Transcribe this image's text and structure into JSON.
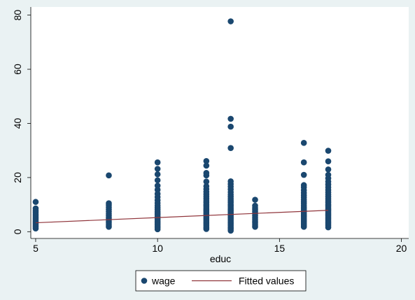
{
  "chart_data": {
    "type": "scatter",
    "title": "",
    "xlabel": "educ",
    "ylabel": "",
    "xlim": [
      4.8,
      20.3
    ],
    "ylim": [
      -2.5,
      83
    ],
    "xticks": [
      5,
      10,
      15,
      20
    ],
    "yticks": [
      0,
      20,
      40,
      60,
      80
    ],
    "grid": false,
    "legend_position": "bottom",
    "series": [
      {
        "name": "wage",
        "kind": "scatter",
        "color": "#1a476f",
        "points": [
          [
            5,
            1.2
          ],
          [
            5,
            1.8
          ],
          [
            5,
            2.4
          ],
          [
            5,
            3.0
          ],
          [
            5,
            3.5
          ],
          [
            5,
            4.0
          ],
          [
            5,
            4.6
          ],
          [
            5,
            5.2
          ],
          [
            5,
            5.8
          ],
          [
            5,
            6.5
          ],
          [
            5,
            7.2
          ],
          [
            5,
            7.9
          ],
          [
            5,
            8.6
          ],
          [
            5,
            11.0
          ],
          [
            8,
            1.8
          ],
          [
            8,
            2.5
          ],
          [
            8,
            3.2
          ],
          [
            8,
            3.9
          ],
          [
            8,
            4.6
          ],
          [
            8,
            5.2
          ],
          [
            8,
            5.9
          ],
          [
            8,
            6.6
          ],
          [
            8,
            7.4
          ],
          [
            8,
            8.2
          ],
          [
            8,
            9.0
          ],
          [
            8,
            9.8
          ],
          [
            8,
            10.5
          ],
          [
            8,
            20.8
          ],
          [
            10,
            0.9
          ],
          [
            10,
            1.5
          ],
          [
            10,
            2.1
          ],
          [
            10,
            2.7
          ],
          [
            10,
            3.3
          ],
          [
            10,
            3.9
          ],
          [
            10,
            4.5
          ],
          [
            10,
            5.1
          ],
          [
            10,
            5.7
          ],
          [
            10,
            6.3
          ],
          [
            10,
            6.9
          ],
          [
            10,
            7.5
          ],
          [
            10,
            8.2
          ],
          [
            10,
            8.9
          ],
          [
            10,
            9.7
          ],
          [
            10,
            10.6
          ],
          [
            10,
            11.6
          ],
          [
            10,
            12.8
          ],
          [
            10,
            14.0
          ],
          [
            10,
            15.5
          ],
          [
            10,
            17.0
          ],
          [
            10,
            19.0
          ],
          [
            10,
            21.2
          ],
          [
            10,
            23.2
          ],
          [
            10,
            25.6
          ],
          [
            12,
            1.0
          ],
          [
            12,
            1.6
          ],
          [
            12,
            2.2
          ],
          [
            12,
            2.8
          ],
          [
            12,
            3.4
          ],
          [
            12,
            4.0
          ],
          [
            12,
            4.6
          ],
          [
            12,
            5.2
          ],
          [
            12,
            5.8
          ],
          [
            12,
            6.4
          ],
          [
            12,
            7.0
          ],
          [
            12,
            7.6
          ],
          [
            12,
            8.2
          ],
          [
            12,
            8.8
          ],
          [
            12,
            9.4
          ],
          [
            12,
            10.0
          ],
          [
            12,
            10.7
          ],
          [
            12,
            11.4
          ],
          [
            12,
            12.2
          ],
          [
            12,
            13.0
          ],
          [
            12,
            13.8
          ],
          [
            12,
            14.7
          ],
          [
            12,
            15.7
          ],
          [
            12,
            16.8
          ],
          [
            12,
            18.5
          ],
          [
            12,
            20.8
          ],
          [
            12,
            21.7
          ],
          [
            12,
            24.4
          ],
          [
            12,
            26.1
          ],
          [
            13,
            0.4
          ],
          [
            13,
            1.0
          ],
          [
            13,
            1.6
          ],
          [
            13,
            2.2
          ],
          [
            13,
            2.8
          ],
          [
            13,
            3.4
          ],
          [
            13,
            4.0
          ],
          [
            13,
            4.6
          ],
          [
            13,
            5.2
          ],
          [
            13,
            5.8
          ],
          [
            13,
            6.4
          ],
          [
            13,
            7.0
          ],
          [
            13,
            7.6
          ],
          [
            13,
            8.2
          ],
          [
            13,
            8.8
          ],
          [
            13,
            9.4
          ],
          [
            13,
            10.0
          ],
          [
            13,
            10.7
          ],
          [
            13,
            11.4
          ],
          [
            13,
            12.1
          ],
          [
            13,
            12.9
          ],
          [
            13,
            13.7
          ],
          [
            13,
            14.6
          ],
          [
            13,
            15.6
          ],
          [
            13,
            16.6
          ],
          [
            13,
            17.6
          ],
          [
            13,
            18.6
          ],
          [
            13,
            30.9
          ],
          [
            13,
            38.8
          ],
          [
            13,
            41.7
          ],
          [
            13,
            77.7
          ],
          [
            14,
            1.8
          ],
          [
            14,
            2.5
          ],
          [
            14,
            3.2
          ],
          [
            14,
            3.9
          ],
          [
            14,
            4.6
          ],
          [
            14,
            5.3
          ],
          [
            14,
            6.0
          ],
          [
            14,
            6.7
          ],
          [
            14,
            7.4
          ],
          [
            14,
            8.1
          ],
          [
            14,
            8.8
          ],
          [
            14,
            9.6
          ],
          [
            14,
            11.8
          ],
          [
            16,
            1.8
          ],
          [
            16,
            2.4
          ],
          [
            16,
            3.0
          ],
          [
            16,
            3.6
          ],
          [
            16,
            4.2
          ],
          [
            16,
            4.8
          ],
          [
            16,
            5.4
          ],
          [
            16,
            6.0
          ],
          [
            16,
            6.6
          ],
          [
            16,
            7.2
          ],
          [
            16,
            7.8
          ],
          [
            16,
            8.4
          ],
          [
            16,
            9.0
          ],
          [
            16,
            9.7
          ],
          [
            16,
            10.4
          ],
          [
            16,
            11.1
          ],
          [
            16,
            11.8
          ],
          [
            16,
            12.6
          ],
          [
            16,
            13.4
          ],
          [
            16,
            14.3
          ],
          [
            16,
            15.3
          ],
          [
            16,
            16.4
          ],
          [
            16,
            17.2
          ],
          [
            16,
            21.0
          ],
          [
            16,
            25.6
          ],
          [
            16,
            32.8
          ],
          [
            17,
            1.6
          ],
          [
            17,
            2.2
          ],
          [
            17,
            2.8
          ],
          [
            17,
            3.4
          ],
          [
            17,
            4.0
          ],
          [
            17,
            4.6
          ],
          [
            17,
            5.2
          ],
          [
            17,
            5.8
          ],
          [
            17,
            6.4
          ],
          [
            17,
            7.0
          ],
          [
            17,
            7.6
          ],
          [
            17,
            8.2
          ],
          [
            17,
            8.8
          ],
          [
            17,
            9.4
          ],
          [
            17,
            10.0
          ],
          [
            17,
            10.7
          ],
          [
            17,
            11.4
          ],
          [
            17,
            12.1
          ],
          [
            17,
            12.9
          ],
          [
            17,
            13.7
          ],
          [
            17,
            14.5
          ],
          [
            17,
            15.4
          ],
          [
            17,
            16.4
          ],
          [
            17,
            17.4
          ],
          [
            17,
            18.5
          ],
          [
            17,
            19.7
          ],
          [
            17,
            21.0
          ],
          [
            17,
            23.0
          ],
          [
            17,
            26.0
          ],
          [
            17,
            29.9
          ]
        ]
      },
      {
        "name": "Fitted values",
        "kind": "line",
        "color": "#90353b",
        "points": [
          [
            5,
            3.3
          ],
          [
            17,
            7.9
          ]
        ]
      }
    ]
  }
}
